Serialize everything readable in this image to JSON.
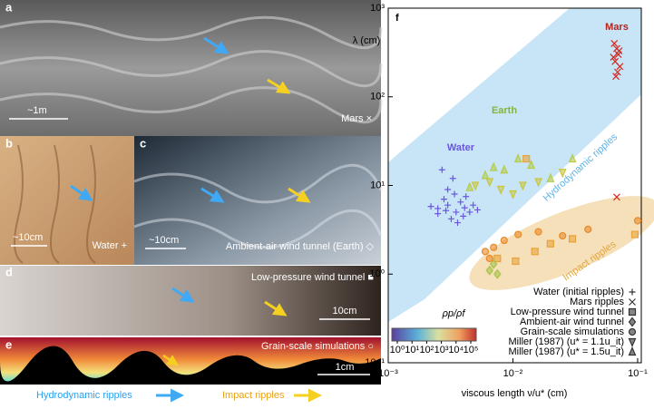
{
  "panels": [
    {
      "label": "a",
      "scale": "~1m",
      "caption": "Mars ×"
    },
    {
      "label": "b",
      "scale": "~10cm",
      "caption": "Water +"
    },
    {
      "label": "c",
      "scale": "~10cm",
      "caption": "Ambient-air wind tunnel (Earth) ◇"
    },
    {
      "label": "d",
      "scale": "10cm",
      "caption": "Low-pressure wind tunnel ■"
    },
    {
      "label": "e",
      "scale": "1cm",
      "caption": "Grain-scale simulations ○"
    }
  ],
  "footer": {
    "hydro": "Hydrodynamic ripples",
    "impact": "Impact ripples"
  },
  "chart_data": {
    "type": "scatter",
    "panel_label": "f",
    "xlabel": "viscous length ν/u* (cm)",
    "ylabel": "λ (cm)",
    "xscale": "log",
    "yscale": "log",
    "xlim": [
      0.001,
      0.107
    ],
    "ylim": [
      0.1,
      1000
    ],
    "xticks": [
      {
        "value": 0.001,
        "label": "10⁻³"
      },
      {
        "value": 0.01,
        "label": "10⁻²"
      },
      {
        "value": 0.1,
        "label": "10⁻¹"
      }
    ],
    "yticks": [
      {
        "value": 0.1,
        "label": "10⁻¹"
      },
      {
        "value": 1,
        "label": "10⁰"
      },
      {
        "value": 10,
        "label": "10¹"
      },
      {
        "value": 100,
        "label": "10²"
      },
      {
        "value": 1000,
        "label": "10³"
      }
    ],
    "regions": [
      {
        "text": "Mars",
        "color": "#b8231c"
      },
      {
        "text": "Earth",
        "color": "#86b33e"
      },
      {
        "text": "Water",
        "color": "#6b55e0"
      }
    ],
    "bands": [
      {
        "text": "Hydrodynamic ripples",
        "color": "#5fb4e8"
      },
      {
        "text": "Impact ripples",
        "color": "#e3a53a"
      }
    ],
    "colorbar": {
      "title": "ρp/ρf",
      "ticks": [
        {
          "value": 1,
          "label": "10⁰"
        },
        {
          "value": 10,
          "label": "10¹"
        },
        {
          "value": 100,
          "label": "10²"
        },
        {
          "value": 1000,
          "label": "10³"
        },
        {
          "value": 10000,
          "label": "10⁴"
        },
        {
          "value": 100000,
          "label": "10⁵"
        }
      ]
    },
    "series": [
      {
        "name": "Water (initial ripples)",
        "marker": "plus",
        "color": "#6b55e0",
        "x": [
          0.0025,
          0.003,
          0.0035,
          0.004,
          0.0028,
          0.0032,
          0.0038,
          0.0045,
          0.0022,
          0.003,
          0.0027,
          0.0033,
          0.0042,
          0.0036,
          0.0025,
          0.0048,
          0.0029,
          0.0041,
          0.0034,
          0.0052
        ],
        "values": [
          5.5,
          6,
          5,
          4.5,
          7,
          4.2,
          6.5,
          5,
          5.8,
          9,
          15,
          12,
          7.5,
          3.8,
          4.8,
          6,
          5.2,
          5.6,
          8,
          5.3
        ]
      },
      {
        "name": "Mars ripples",
        "marker": "x",
        "color": "#d4281f",
        "x": [
          0.065,
          0.068,
          0.07,
          0.066,
          0.072,
          0.069,
          0.064,
          0.071,
          0.067,
          0.068
        ],
        "values": [
          400,
          350,
          300,
          250,
          220,
          190,
          280,
          330,
          170,
          7.4
        ]
      },
      {
        "name": "Low-pressure wind tunnel",
        "marker": "square",
        "color": "#e8a33a",
        "x": [
          0.0128,
          0.0075,
          0.0105,
          0.015,
          0.02,
          0.03,
          0.095
        ],
        "values": [
          20,
          1.5,
          1.4,
          1.8,
          2.2,
          2.5,
          2.8
        ]
      },
      {
        "name": "Ambient-air wind tunnel",
        "marker": "diamond",
        "color": "#a8c24a",
        "x": [
          0.0065,
          0.007,
          0.0075
        ],
        "values": [
          1.1,
          1.3,
          1.0
        ]
      },
      {
        "name": "Grain-scale simulations",
        "marker": "circle",
        "color": "#e88a2a",
        "x": [
          0.006,
          0.0065,
          0.007,
          0.0085,
          0.011,
          0.016,
          0.025,
          0.04,
          0.1
        ],
        "values": [
          1.8,
          1.5,
          2,
          2.4,
          2.8,
          3,
          2.7,
          3.2,
          4
        ]
      },
      {
        "name": "Miller (1987) (u* = 1.1u_it)",
        "marker": "tri-down",
        "color": "#c9c640",
        "x": [
          0.005,
          0.0065,
          0.008,
          0.01,
          0.012,
          0.016,
          0.025
        ],
        "values": [
          10,
          11,
          9,
          8,
          10,
          11,
          14
        ]
      },
      {
        "name": "Miller (1987) (u* = 1.5u_it)",
        "marker": "tri-up",
        "color": "#b6cc4a",
        "x": [
          0.0045,
          0.006,
          0.007,
          0.0085,
          0.011,
          0.014,
          0.02,
          0.03
        ],
        "values": [
          9.5,
          13,
          16,
          15,
          20,
          17,
          12,
          20
        ]
      }
    ]
  }
}
